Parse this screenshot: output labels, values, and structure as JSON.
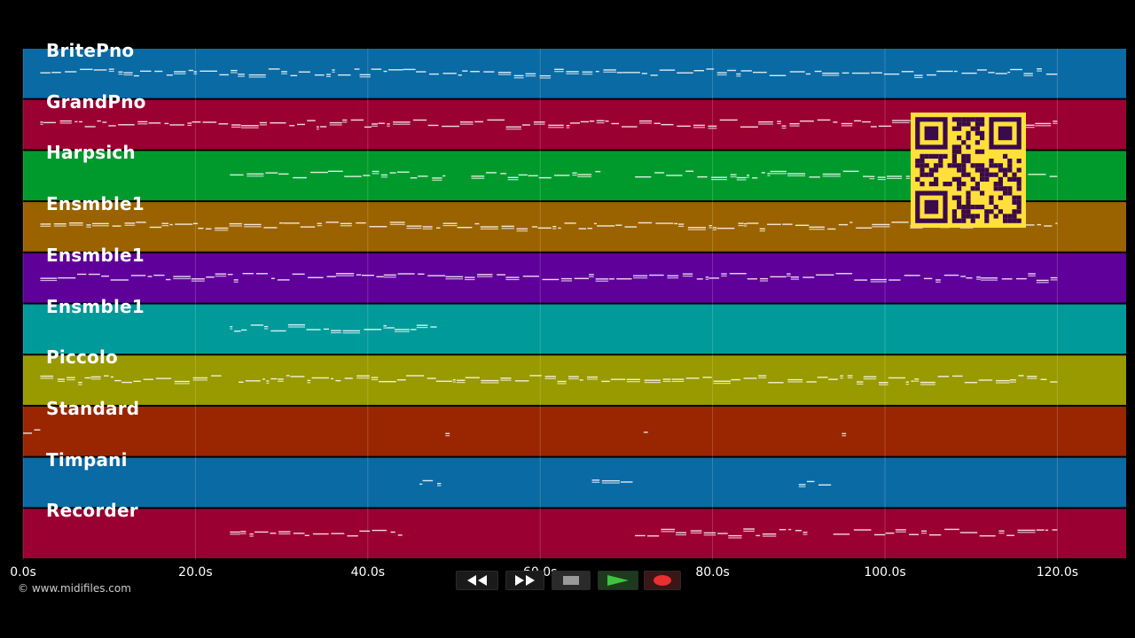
{
  "tracks": [
    {
      "name": "BritePno",
      "color": "#0a6aa3"
    },
    {
      "name": "GrandPno",
      "color": "#9b0033"
    },
    {
      "name": "Harpsich",
      "color": "#009a2c"
    },
    {
      "name": "Ensmble1",
      "color": "#9a6300"
    },
    {
      "name": "Ensmble1",
      "color": "#5f009a"
    },
    {
      "name": "Ensmble1",
      "color": "#009a9a"
    },
    {
      "name": "Piccolo",
      "color": "#999900"
    },
    {
      "name": "Standard",
      "color": "#992600"
    },
    {
      "name": "Timpani",
      "color": "#0a6aa3"
    },
    {
      "name": "Recorder",
      "color": "#9b0033"
    }
  ],
  "timeline": {
    "ticks": [
      "0.0s",
      "20.0s",
      "40.0s",
      "60.0s",
      "80.0s",
      "100.0s",
      "120.0s"
    ],
    "max_seconds": 128
  },
  "copyright": "© www.midifiles.com",
  "transport": {
    "rewind": "rewind-icon",
    "fast_forward": "fast-forward-icon",
    "stop": "stop-icon",
    "play": "play-icon",
    "record": "record-icon"
  },
  "qr": {
    "color": "#ffe03a",
    "dark": "#3a0a4a"
  }
}
